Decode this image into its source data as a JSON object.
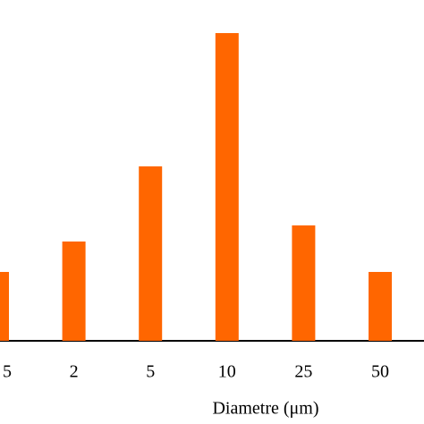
{
  "chart_data": {
    "type": "bar",
    "x_label": "Diametre (μm)",
    "categories": [
      "5",
      "2",
      "5",
      "10",
      "25",
      "50"
    ],
    "values": [
      77,
      111,
      195,
      344,
      129,
      77
    ],
    "color": "#ff6600",
    "ylim": [
      0,
      381
    ]
  }
}
